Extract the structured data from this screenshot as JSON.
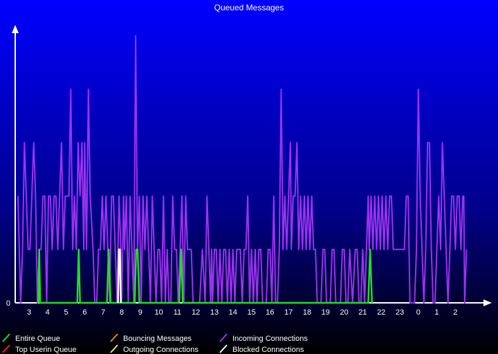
{
  "chart_data": {
    "type": "line",
    "title": "Queued Messages",
    "xlabel": "",
    "ylabel": "",
    "y_tick_labels": [
      "0"
    ],
    "ylim": [
      0,
      5
    ],
    "x_tick_labels": [
      "3",
      "4",
      "5",
      "6",
      "7",
      "8",
      "9",
      "10",
      "11",
      "12",
      "13",
      "14",
      "15",
      "16",
      "17",
      "18",
      "19",
      "20",
      "21",
      "22",
      "23",
      "0",
      "1",
      "2"
    ],
    "grid": false,
    "legend_position": "bottom",
    "series": [
      {
        "name": "Entire Queue",
        "color": "#22dd22",
        "points": [
          [
            3.5,
            0
          ],
          [
            3.55,
            1
          ],
          [
            3.6,
            0
          ],
          [
            5.6,
            0
          ],
          [
            5.68,
            1
          ],
          [
            5.75,
            0
          ],
          [
            7.2,
            0
          ],
          [
            7.3,
            1
          ],
          [
            7.4,
            0
          ],
          [
            8.7,
            0
          ],
          [
            8.78,
            1
          ],
          [
            8.86,
            1
          ],
          [
            8.95,
            0
          ],
          [
            11.1,
            0
          ],
          [
            11.2,
            1
          ],
          [
            11.3,
            0
          ],
          [
            21.3,
            0
          ],
          [
            21.4,
            1
          ],
          [
            21.5,
            0
          ]
        ]
      },
      {
        "name": "Top Userin Queue",
        "color": "#ee2222",
        "points": []
      },
      {
        "name": "Bouncing Messages",
        "color": "#ee8800",
        "points": []
      },
      {
        "name": "Outgoing Connections",
        "color": "#eeee22",
        "points": []
      },
      {
        "name": "Incoming Connections",
        "color": "#9933ee",
        "points": [
          [
            2.4,
            2
          ],
          [
            2.55,
            0
          ],
          [
            2.65,
            1
          ],
          [
            2.75,
            3
          ],
          [
            2.85,
            2
          ],
          [
            2.95,
            1
          ],
          [
            3.05,
            1
          ],
          [
            3.15,
            2
          ],
          [
            3.25,
            3
          ],
          [
            3.35,
            2
          ],
          [
            3.45,
            0
          ],
          [
            3.55,
            1
          ],
          [
            3.65,
            1
          ],
          [
            3.75,
            2
          ],
          [
            3.85,
            2
          ],
          [
            3.95,
            0
          ],
          [
            4.0,
            1
          ],
          [
            4.05,
            2
          ],
          [
            4.15,
            2
          ],
          [
            4.25,
            1
          ],
          [
            4.35,
            2
          ],
          [
            4.45,
            2
          ],
          [
            4.55,
            1
          ],
          [
            4.65,
            2
          ],
          [
            4.75,
            3
          ],
          [
            4.85,
            1
          ],
          [
            4.95,
            2
          ],
          [
            5.05,
            2
          ],
          [
            5.15,
            2
          ],
          [
            5.25,
            4
          ],
          [
            5.35,
            1
          ],
          [
            5.45,
            2
          ],
          [
            5.55,
            1
          ],
          [
            5.65,
            3
          ],
          [
            5.75,
            2
          ],
          [
            5.85,
            3
          ],
          [
            5.9,
            2
          ],
          [
            5.95,
            1
          ],
          [
            6.0,
            3
          ],
          [
            6.05,
            2
          ],
          [
            6.1,
            1
          ],
          [
            6.2,
            4
          ],
          [
            6.3,
            2
          ],
          [
            6.45,
            1
          ],
          [
            6.55,
            0
          ],
          [
            6.65,
            0
          ],
          [
            6.75,
            1
          ],
          [
            6.85,
            1
          ],
          [
            6.95,
            2
          ],
          [
            7.05,
            1
          ],
          [
            7.15,
            2
          ],
          [
            7.25,
            1
          ],
          [
            7.35,
            0
          ],
          [
            7.45,
            2
          ],
          [
            7.55,
            2
          ],
          [
            7.65,
            1
          ],
          [
            7.75,
            0
          ],
          [
            7.85,
            2
          ],
          [
            7.95,
            1
          ],
          [
            8.0,
            0
          ],
          [
            8.1,
            2
          ],
          [
            8.15,
            1
          ],
          [
            8.25,
            2
          ],
          [
            8.35,
            0
          ],
          [
            8.45,
            2
          ],
          [
            8.55,
            1
          ],
          [
            8.65,
            0
          ],
          [
            8.75,
            5
          ],
          [
            8.85,
            1
          ],
          [
            8.95,
            2
          ],
          [
            9.05,
            0
          ],
          [
            9.15,
            2
          ],
          [
            9.25,
            1
          ],
          [
            9.35,
            2
          ],
          [
            9.45,
            1
          ],
          [
            9.55,
            0
          ],
          [
            9.65,
            2
          ],
          [
            9.75,
            1
          ],
          [
            9.85,
            0
          ],
          [
            9.95,
            1
          ],
          [
            10.05,
            1
          ],
          [
            10.15,
            0
          ],
          [
            10.25,
            2
          ],
          [
            10.35,
            0
          ],
          [
            10.45,
            1
          ],
          [
            10.55,
            0
          ],
          [
            10.65,
            0
          ],
          [
            10.75,
            2
          ],
          [
            10.85,
            1
          ],
          [
            10.95,
            1
          ],
          [
            11.05,
            0
          ],
          [
            11.15,
            1
          ],
          [
            11.25,
            2
          ],
          [
            11.35,
            0
          ],
          [
            11.45,
            2
          ],
          [
            11.55,
            1
          ],
          [
            11.65,
            1
          ],
          [
            11.75,
            1
          ],
          [
            11.85,
            0
          ],
          [
            12.0,
            0
          ],
          [
            12.2,
            0
          ],
          [
            12.35,
            1
          ],
          [
            12.5,
            0
          ],
          [
            12.6,
            2
          ],
          [
            12.7,
            1
          ],
          [
            12.8,
            0
          ],
          [
            12.85,
            1
          ],
          [
            12.9,
            0
          ],
          [
            13.0,
            1
          ],
          [
            13.1,
            1
          ],
          [
            13.2,
            0
          ],
          [
            13.3,
            1
          ],
          [
            13.4,
            0
          ],
          [
            13.5,
            1
          ],
          [
            13.6,
            1
          ],
          [
            13.7,
            0
          ],
          [
            13.8,
            1
          ],
          [
            13.9,
            0
          ],
          [
            14.0,
            1
          ],
          [
            14.1,
            0
          ],
          [
            14.2,
            1
          ],
          [
            14.3,
            1
          ],
          [
            14.4,
            1
          ],
          [
            14.5,
            0
          ],
          [
            14.6,
            1
          ],
          [
            14.7,
            1
          ],
          [
            14.8,
            2
          ],
          [
            14.9,
            0
          ],
          [
            15.0,
            1
          ],
          [
            15.1,
            0
          ],
          [
            15.2,
            1
          ],
          [
            15.3,
            0
          ],
          [
            15.4,
            1
          ],
          [
            15.5,
            1
          ],
          [
            15.6,
            0
          ],
          [
            15.7,
            0
          ],
          [
            15.8,
            0
          ],
          [
            15.9,
            1
          ],
          [
            16.0,
            1
          ],
          [
            16.1,
            0
          ],
          [
            16.2,
            2
          ],
          [
            16.3,
            0
          ],
          [
            16.4,
            0
          ],
          [
            16.5,
            1
          ],
          [
            16.6,
            4
          ],
          [
            16.7,
            1
          ],
          [
            16.8,
            2
          ],
          [
            16.9,
            1
          ],
          [
            17.0,
            2
          ],
          [
            17.1,
            3
          ],
          [
            17.15,
            1
          ],
          [
            17.25,
            2
          ],
          [
            17.35,
            2
          ],
          [
            17.45,
            3
          ],
          [
            17.55,
            1
          ],
          [
            17.65,
            2
          ],
          [
            17.75,
            1
          ],
          [
            17.85,
            2
          ],
          [
            17.95,
            1
          ],
          [
            18.05,
            2
          ],
          [
            18.15,
            1
          ],
          [
            18.25,
            2
          ],
          [
            18.35,
            1
          ],
          [
            18.45,
            1
          ],
          [
            18.55,
            0
          ],
          [
            18.65,
            0
          ],
          [
            18.75,
            0
          ],
          [
            18.85,
            1
          ],
          [
            18.95,
            1
          ],
          [
            19.05,
            0
          ],
          [
            19.15,
            0
          ],
          [
            19.25,
            0
          ],
          [
            19.35,
            1
          ],
          [
            19.45,
            1
          ],
          [
            19.55,
            0
          ],
          [
            19.65,
            0
          ],
          [
            19.8,
            0
          ],
          [
            19.9,
            1
          ],
          [
            20.0,
            1
          ],
          [
            20.1,
            0
          ],
          [
            20.2,
            0
          ],
          [
            20.3,
            1
          ],
          [
            20.45,
            0
          ],
          [
            20.6,
            1
          ],
          [
            20.7,
            1
          ],
          [
            20.8,
            0
          ],
          [
            20.9,
            0
          ],
          [
            21.0,
            1
          ],
          [
            21.1,
            0
          ],
          [
            21.2,
            1
          ],
          [
            21.3,
            2
          ],
          [
            21.35,
            1
          ],
          [
            21.45,
            2
          ],
          [
            21.55,
            1
          ],
          [
            21.65,
            2
          ],
          [
            21.75,
            1
          ],
          [
            21.85,
            2
          ],
          [
            21.95,
            1
          ],
          [
            22.05,
            2
          ],
          [
            22.15,
            1
          ],
          [
            22.25,
            2
          ],
          [
            22.35,
            1
          ],
          [
            22.45,
            2
          ],
          [
            22.55,
            2
          ],
          [
            22.65,
            1
          ],
          [
            22.75,
            1
          ],
          [
            22.85,
            1
          ],
          [
            23.0,
            1
          ],
          [
            23.15,
            1
          ],
          [
            23.25,
            1
          ],
          [
            23.35,
            2
          ],
          [
            23.45,
            2
          ],
          [
            23.55,
            0
          ],
          [
            23.7,
            0
          ],
          [
            23.8,
            0
          ],
          [
            23.9,
            1
          ],
          [
            24.0,
            4
          ],
          [
            24.1,
            2
          ],
          [
            24.2,
            1
          ],
          [
            24.3,
            0
          ],
          [
            24.4,
            1
          ],
          [
            24.5,
            3
          ],
          [
            24.6,
            3
          ],
          [
            24.7,
            1
          ],
          [
            24.8,
            0
          ],
          [
            24.9,
            0
          ],
          [
            25.0,
            1
          ],
          [
            25.1,
            2
          ],
          [
            25.2,
            1
          ],
          [
            25.3,
            3
          ],
          [
            25.4,
            2
          ],
          [
            25.5,
            1
          ],
          [
            25.6,
            0
          ],
          [
            25.7,
            1
          ],
          [
            25.8,
            2
          ],
          [
            25.9,
            2
          ],
          [
            26.0,
            1
          ],
          [
            26.1,
            2
          ],
          [
            26.2,
            2
          ],
          [
            26.3,
            1
          ],
          [
            26.4,
            2
          ],
          [
            26.45,
            2
          ],
          [
            26.5,
            0
          ],
          [
            26.6,
            1
          ]
        ]
      },
      {
        "name": "Blocked Connections",
        "color": "#ffffff",
        "points": [
          [
            7.8,
            0
          ],
          [
            7.85,
            1
          ],
          [
            7.9,
            1
          ],
          [
            7.95,
            0
          ]
        ]
      }
    ]
  }
}
